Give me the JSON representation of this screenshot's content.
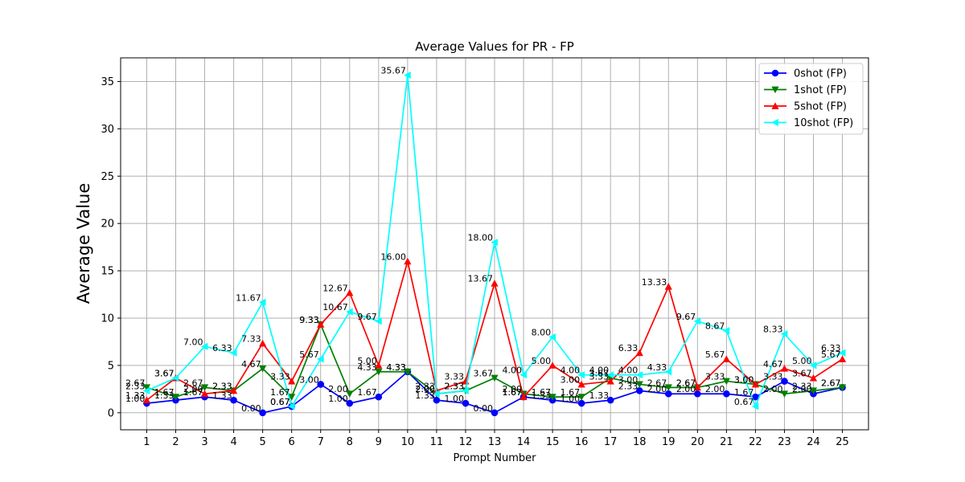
{
  "chart_data": {
    "type": "line",
    "title": "Average Values for PR - FP",
    "xlabel": "Prompt Number",
    "ylabel": "Average Value",
    "x": [
      1,
      2,
      3,
      4,
      5,
      6,
      7,
      8,
      9,
      10,
      11,
      12,
      13,
      14,
      15,
      16,
      17,
      18,
      19,
      20,
      21,
      22,
      23,
      24,
      25
    ],
    "x_ticks": [
      "1",
      "2",
      "3",
      "4",
      "5",
      "6",
      "7",
      "8",
      "9",
      "10",
      "11",
      "12",
      "13",
      "14",
      "15",
      "16",
      "17",
      "18",
      "19",
      "20",
      "21",
      "22",
      "23",
      "24",
      "25"
    ],
    "y_ticks": [
      "0",
      "5",
      "10",
      "15",
      "20",
      "25",
      "30",
      "35"
    ],
    "ylim": [
      -1.8,
      37.5
    ],
    "xlim": [
      0.1,
      25.9
    ],
    "grid": true,
    "legend_position": "upper right",
    "series": [
      {
        "name": "0shot (FP)",
        "color": "#0000ff",
        "marker": "circle",
        "values": [
          1.0,
          1.33,
          1.67,
          1.33,
          0.0,
          0.67,
          3.0,
          1.0,
          1.67,
          4.33,
          1.33,
          1.0,
          0.0,
          1.67,
          1.33,
          1.0,
          1.33,
          2.33,
          2.0,
          2.0,
          2.0,
          1.67,
          3.33,
          2.0,
          2.67
        ],
        "labels": [
          "1.00",
          "1.33",
          "1.67",
          "1.33",
          "0.00",
          "0.67",
          "3.00",
          "1.00",
          "1.67",
          "4.33",
          "1.33",
          "1.00",
          "0.00",
          "1.67",
          "1.33",
          "1.00",
          "1.33",
          "2.33",
          "2.00",
          "2.00",
          "2.00",
          "1.67",
          "3.33",
          "2.00",
          "2.67"
        ]
      },
      {
        "name": "1shot (FP)",
        "color": "#008000",
        "marker": "triangle-down",
        "values": [
          2.67,
          1.67,
          2.67,
          2.33,
          4.67,
          1.67,
          9.33,
          2.0,
          4.33,
          4.33,
          2.0,
          2.33,
          3.67,
          2.0,
          1.67,
          1.67,
          3.67,
          3.0,
          2.67,
          2.67,
          3.33,
          3.0,
          2.0,
          2.33,
          2.67
        ],
        "labels": [
          "2.67",
          "1.67",
          "2.67",
          "2.33",
          "4.67",
          "1.67",
          "9.33",
          "2.00",
          "4.33",
          "4.33",
          "2.00",
          "2.33",
          "3.67",
          "2.00",
          "1.67",
          "1.67",
          "3.67",
          "3.00",
          "2.67",
          "2.67",
          "3.33",
          "3.00",
          "2.00",
          "2.33",
          "2.67"
        ]
      },
      {
        "name": "5shot (FP)",
        "color": "#ff0000",
        "marker": "triangle-up",
        "values": [
          1.33,
          3.67,
          2.0,
          2.33,
          7.33,
          3.33,
          9.33,
          12.67,
          5.0,
          16.0,
          2.33,
          3.33,
          13.67,
          1.67,
          5.0,
          3.0,
          3.33,
          6.33,
          13.33,
          2.67,
          5.67,
          3.0,
          4.67,
          3.67,
          5.67
        ],
        "labels": [
          "1.33",
          "3.67",
          "2.00",
          "2.33",
          "7.33",
          "3.33",
          "9.33",
          "12.67",
          "5.00",
          "16.00",
          "2.33",
          "3.33",
          "13.67",
          "1.67",
          "5.00",
          "3.00",
          "3.33",
          "6.33",
          "13.33",
          "2.67",
          "5.67",
          "3.00",
          "4.67",
          "3.67",
          "5.67"
        ]
      },
      {
        "name": "10shot (FP)",
        "color": "#00ffff",
        "marker": "triangle-left",
        "values": [
          2.33,
          3.67,
          7.0,
          6.33,
          11.67,
          0.67,
          5.67,
          10.67,
          9.67,
          35.67,
          2.0,
          2.33,
          18.0,
          4.0,
          8.0,
          4.0,
          4.0,
          4.0,
          4.33,
          9.67,
          8.67,
          0.67,
          8.33,
          5.0,
          6.33
        ],
        "labels": [
          "2.33",
          "3.67",
          "7.00",
          "6.33",
          "11.67",
          "0.67",
          "5.67",
          "10.67",
          "9.67",
          "35.67",
          "2.00",
          "2.33",
          "18.00",
          "4.00",
          "8.00",
          "4.00",
          "4.00",
          "4.00",
          "4.33",
          "9.67",
          "8.67",
          "0.67",
          "8.33",
          "5.00",
          "6.33"
        ]
      }
    ]
  }
}
